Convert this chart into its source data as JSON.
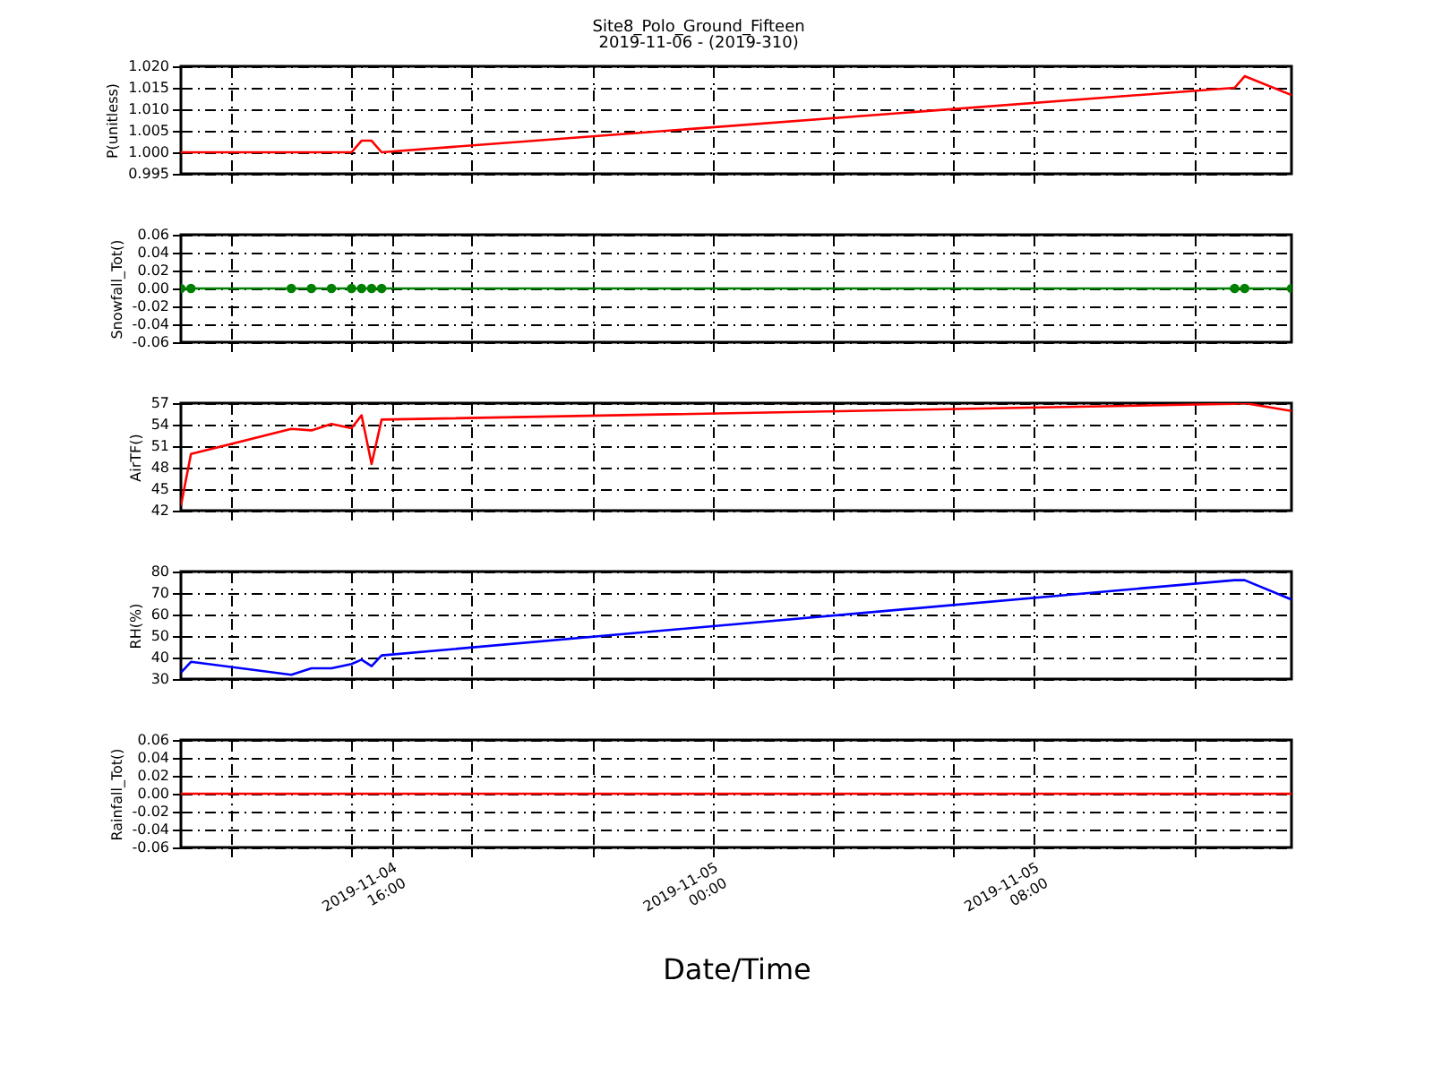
{
  "chart_data": [
    {
      "type": "line",
      "title": "Site8_Polo_Ground_Fifteen",
      "subtitle": "2019-11-06 - (2019-310)",
      "ylabel": "P(unitless)",
      "x": [
        "2019-11-04T10:45",
        "2019-11-04T11:00",
        "2019-11-04T13:30",
        "2019-11-04T14:00",
        "2019-11-04T14:30",
        "2019-11-04T15:00",
        "2019-11-04T15:15",
        "2019-11-04T15:30",
        "2019-11-04T15:45",
        "2019-11-05T13:00",
        "2019-11-05T13:15",
        "2019-11-05T14:25"
      ],
      "series": [
        {
          "color": "#ff0000",
          "values": [
            1.0,
            1.0,
            1.0,
            1.0,
            1.0,
            1.0,
            1.0027,
            1.0027,
            1.0,
            1.015,
            1.0177,
            1.0133
          ]
        }
      ],
      "xlim": [
        "2019-11-04T10:45",
        "2019-11-05T14:25"
      ],
      "xticks": [
        {
          "value": "2019-11-04T12:00",
          "label": null
        },
        {
          "value": "2019-11-04T15:00",
          "label": null
        },
        {
          "value": "2019-11-04T16:00",
          "label": null
        },
        {
          "value": "2019-11-04T18:00",
          "label": null
        },
        {
          "value": "2019-11-04T21:00",
          "label": null
        },
        {
          "value": "2019-11-05T00:00",
          "label": null
        },
        {
          "value": "2019-11-05T03:00",
          "label": null
        },
        {
          "value": "2019-11-05T06:00",
          "label": null
        },
        {
          "value": "2019-11-05T08:00",
          "label": null
        },
        {
          "value": "2019-11-05T12:00",
          "label": null
        }
      ],
      "ylim": [
        0.995,
        1.02
      ],
      "yticks": [
        {
          "value": 0.995,
          "label": "0.995"
        },
        {
          "value": 1.0,
          "label": "1.000"
        },
        {
          "value": 1.005,
          "label": "1.005"
        },
        {
          "value": 1.01,
          "label": "1.010"
        },
        {
          "value": 1.015,
          "label": "1.015"
        },
        {
          "value": 1.02,
          "label": "1.020"
        }
      ],
      "grid": true,
      "tick_labels": "y",
      "line_style": "solid"
    },
    {
      "type": "line",
      "ylabel": "Snowfall_Tot()",
      "x": [
        "2019-11-04T10:45",
        "2019-11-04T11:00",
        "2019-11-04T13:30",
        "2019-11-04T14:00",
        "2019-11-04T14:30",
        "2019-11-04T15:00",
        "2019-11-04T15:15",
        "2019-11-04T15:30",
        "2019-11-04T15:45",
        "2019-11-05T13:00",
        "2019-11-05T13:15",
        "2019-11-05T14:25"
      ],
      "series": [
        {
          "color": "#008000",
          "values": [
            0,
            0,
            0,
            0,
            0,
            0,
            0,
            0,
            0,
            0,
            0,
            0
          ]
        }
      ],
      "xlim": [
        "2019-11-04T10:45",
        "2019-11-05T14:25"
      ],
      "xticks": [
        {
          "value": "2019-11-04T12:00",
          "label": null
        },
        {
          "value": "2019-11-04T15:00",
          "label": null
        },
        {
          "value": "2019-11-04T16:00",
          "label": null
        },
        {
          "value": "2019-11-04T18:00",
          "label": null
        },
        {
          "value": "2019-11-04T21:00",
          "label": null
        },
        {
          "value": "2019-11-05T00:00",
          "label": null
        },
        {
          "value": "2019-11-05T03:00",
          "label": null
        },
        {
          "value": "2019-11-05T06:00",
          "label": null
        },
        {
          "value": "2019-11-05T08:00",
          "label": null
        },
        {
          "value": "2019-11-05T12:00",
          "label": null
        }
      ],
      "ylim": [
        -0.06,
        0.06
      ],
      "yticks": [
        {
          "value": -0.06,
          "label": "-0.06"
        },
        {
          "value": -0.04,
          "label": "-0.04"
        },
        {
          "value": -0.02,
          "label": "-0.02"
        },
        {
          "value": 0,
          "label": "0.00"
        },
        {
          "value": 0.02,
          "label": "0.02"
        },
        {
          "value": 0.04,
          "label": "0.04"
        },
        {
          "value": 0.06,
          "label": "0.06"
        }
      ],
      "grid": true,
      "tick_labels": "y",
      "line_style": "solid",
      "marker": "circle"
    },
    {
      "type": "line",
      "ylabel": "AirTF()",
      "x": [
        "2019-11-04T10:45",
        "2019-11-04T11:00",
        "2019-11-04T13:30",
        "2019-11-04T14:00",
        "2019-11-04T14:30",
        "2019-11-04T15:00",
        "2019-11-04T15:15",
        "2019-11-04T15:30",
        "2019-11-04T15:45",
        "2019-11-05T13:00",
        "2019-11-05T13:15",
        "2019-11-05T14:25"
      ],
      "series": [
        {
          "color": "#ff0000",
          "values": [
            42.7,
            49.9,
            53.4,
            53.2,
            54.1,
            53.5,
            55.3,
            48.5,
            54.7,
            56.9,
            57.0,
            55.9
          ]
        }
      ],
      "xlim": [
        "2019-11-04T10:45",
        "2019-11-05T14:25"
      ],
      "xticks": [
        {
          "value": "2019-11-04T12:00",
          "label": null
        },
        {
          "value": "2019-11-04T15:00",
          "label": null
        },
        {
          "value": "2019-11-04T16:00",
          "label": null
        },
        {
          "value": "2019-11-04T18:00",
          "label": null
        },
        {
          "value": "2019-11-04T21:00",
          "label": null
        },
        {
          "value": "2019-11-05T00:00",
          "label": null
        },
        {
          "value": "2019-11-05T03:00",
          "label": null
        },
        {
          "value": "2019-11-05T06:00",
          "label": null
        },
        {
          "value": "2019-11-05T08:00",
          "label": null
        },
        {
          "value": "2019-11-05T12:00",
          "label": null
        }
      ],
      "ylim": [
        42,
        57
      ],
      "yticks": [
        42,
        45,
        48,
        51,
        54,
        57
      ],
      "grid": true,
      "tick_labels": "y",
      "line_style": "solid"
    },
    {
      "type": "line",
      "ylabel": "RH(%)",
      "x": [
        "2019-11-04T10:45",
        "2019-11-04T11:00",
        "2019-11-04T13:30",
        "2019-11-04T14:00",
        "2019-11-04T14:30",
        "2019-11-04T15:00",
        "2019-11-04T15:15",
        "2019-11-04T15:30",
        "2019-11-04T15:45",
        "2019-11-05T13:00",
        "2019-11-05T13:15",
        "2019-11-05T14:25"
      ],
      "series": [
        {
          "color": "#0000ff",
          "values": [
            33,
            38,
            32,
            35,
            35,
            37,
            39,
            36,
            41,
            76,
            76,
            67
          ]
        }
      ],
      "xlim": [
        "2019-11-04T10:45",
        "2019-11-05T14:25"
      ],
      "xticks": [
        {
          "value": "2019-11-04T12:00",
          "label": null
        },
        {
          "value": "2019-11-04T15:00",
          "label": null
        },
        {
          "value": "2019-11-04T16:00",
          "label": null
        },
        {
          "value": "2019-11-04T18:00",
          "label": null
        },
        {
          "value": "2019-11-04T21:00",
          "label": null
        },
        {
          "value": "2019-11-05T00:00",
          "label": null
        },
        {
          "value": "2019-11-05T03:00",
          "label": null
        },
        {
          "value": "2019-11-05T06:00",
          "label": null
        },
        {
          "value": "2019-11-05T08:00",
          "label": null
        },
        {
          "value": "2019-11-05T12:00",
          "label": null
        }
      ],
      "ylim": [
        30,
        80
      ],
      "yticks": [
        30,
        40,
        50,
        60,
        70,
        80
      ],
      "grid": true,
      "tick_labels": "y",
      "line_style": "solid"
    },
    {
      "type": "line",
      "ylabel": "Rainfall_Tot()",
      "xlabel": "Date/Time",
      "x": [
        "2019-11-04T10:45",
        "2019-11-04T11:00",
        "2019-11-04T13:30",
        "2019-11-04T14:00",
        "2019-11-04T14:30",
        "2019-11-04T15:00",
        "2019-11-04T15:15",
        "2019-11-04T15:30",
        "2019-11-04T15:45",
        "2019-11-05T13:00",
        "2019-11-05T13:15",
        "2019-11-05T14:25"
      ],
      "series": [
        {
          "color": "#ff0000",
          "values": [
            0,
            0,
            0,
            0,
            0,
            0,
            0,
            0,
            0,
            0,
            0,
            0
          ]
        }
      ],
      "xlim": [
        "2019-11-04T10:45",
        "2019-11-05T14:25"
      ],
      "xticks": [
        {
          "value": "2019-11-04T12:00",
          "label": null
        },
        {
          "value": "2019-11-04T15:00",
          "label": null
        },
        {
          "value": "2019-11-04T16:00",
          "label": "2019-11-04\n16:00"
        },
        {
          "value": "2019-11-04T18:00",
          "label": null
        },
        {
          "value": "2019-11-04T21:00",
          "label": null
        },
        {
          "value": "2019-11-05T00:00",
          "label": "2019-11-05\n00:00"
        },
        {
          "value": "2019-11-05T03:00",
          "label": null
        },
        {
          "value": "2019-11-05T06:00",
          "label": null
        },
        {
          "value": "2019-11-05T08:00",
          "label": "2019-11-05\n08:00"
        },
        {
          "value": "2019-11-05T12:00",
          "label": null
        }
      ],
      "ylim": [
        -0.06,
        0.06
      ],
      "yticks": [
        {
          "value": -0.06,
          "label": "-0.06"
        },
        {
          "value": -0.04,
          "label": "-0.04"
        },
        {
          "value": -0.02,
          "label": "-0.02"
        },
        {
          "value": 0,
          "label": "0.00"
        },
        {
          "value": 0.02,
          "label": "0.02"
        },
        {
          "value": 0.04,
          "label": "0.04"
        },
        {
          "value": 0.06,
          "label": "0.06"
        }
      ],
      "grid": true,
      "line_style": "solid"
    }
  ]
}
